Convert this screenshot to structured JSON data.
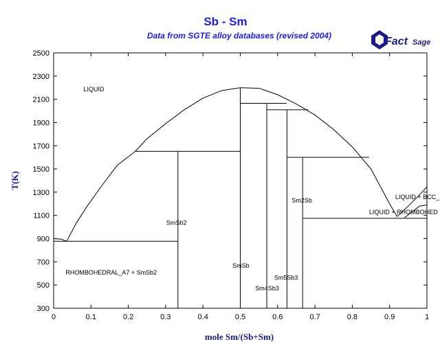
{
  "chart_data": {
    "type": "line",
    "title": "Sb - Sm",
    "subtitle": "Data from SGTE alloy databases (revised 2004)",
    "xlabel": "mole Sm/(Sb+Sm)",
    "ylabel": "T(K)",
    "xlim": [
      0,
      1
    ],
    "ylim": [
      300,
      2500
    ],
    "xticks": [
      "0",
      "0.1",
      "0.2",
      "0.3",
      "0.4",
      "0.5",
      "0.6",
      "0.7",
      "0.8",
      "0.9",
      "1"
    ],
    "yticks": [
      "300",
      "500",
      "700",
      "900",
      "1100",
      "1300",
      "1500",
      "1700",
      "1900",
      "2100",
      "2300",
      "2500"
    ],
    "logo": {
      "text_a": "Fact",
      "text_b": "Sage"
    },
    "series": [
      {
        "values": [
          [
            0,
            900
          ],
          [
            0.02,
            895
          ],
          [
            0.035,
            877
          ],
          [
            0.06,
            1030
          ],
          [
            0.09,
            1180
          ],
          [
            0.13,
            1360
          ],
          [
            0.17,
            1530
          ],
          [
            0.219,
            1652
          ]
        ]
      },
      {
        "values": [
          [
            0.219,
            1652
          ],
          [
            0.25,
            1760
          ],
          [
            0.3,
            1890
          ],
          [
            0.35,
            2010
          ],
          [
            0.4,
            2110
          ],
          [
            0.45,
            2175
          ],
          [
            0.5,
            2200
          ],
          [
            0.55,
            2195
          ],
          [
            0.6,
            2140
          ],
          [
            0.65,
            2060
          ],
          [
            0.7,
            1965
          ],
          [
            0.75,
            1840
          ],
          [
            0.8,
            1690
          ],
          [
            0.85,
            1500
          ],
          [
            0.9,
            1200
          ],
          [
            0.92,
            1090
          ]
        ]
      },
      {
        "values": [
          [
            0.92,
            1090
          ],
          [
            0.95,
            1180
          ],
          [
            0.975,
            1260
          ],
          [
            1.0,
            1345
          ]
        ]
      },
      {
        "values": [
          [
            0.94,
            1080
          ],
          [
            0.96,
            1130
          ],
          [
            0.98,
            1180
          ],
          [
            1.0,
            1190
          ]
        ]
      }
    ],
    "lines": [
      {
        "x": [
          0,
          0.333
        ],
        "y": [
          877,
          877
        ]
      },
      {
        "x": [
          0.219,
          0.5
        ],
        "y": [
          1652,
          1652
        ]
      },
      {
        "x": [
          0.5,
          0.624
        ],
        "y": [
          2065,
          2065
        ]
      },
      {
        "x": [
          0.571,
          0.682
        ],
        "y": [
          2010,
          2010
        ]
      },
      {
        "x": [
          0.625,
          0.845
        ],
        "y": [
          1600,
          1600
        ]
      },
      {
        "x": [
          0.667,
          1.0
        ],
        "y": [
          1075,
          1075
        ]
      },
      {
        "x": [
          0.333,
          0.333
        ],
        "y": [
          300,
          1652
        ]
      },
      {
        "x": [
          0.5,
          0.5
        ],
        "y": [
          300,
          2200
        ]
      },
      {
        "x": [
          0.571,
          0.571
        ],
        "y": [
          300,
          2065
        ]
      },
      {
        "x": [
          0.625,
          0.625
        ],
        "y": [
          300,
          2010
        ]
      },
      {
        "x": [
          0.667,
          0.667
        ],
        "y": [
          300,
          1600
        ]
      }
    ],
    "annotations": [
      {
        "text": "LIQUID",
        "x": 0.08,
        "y": 2170
      },
      {
        "text": "SmSb2",
        "x": 0.302,
        "y": 1020
      },
      {
        "text": "SmSb",
        "x": 0.479,
        "y": 650
      },
      {
        "text": "Sm4Sb3",
        "x": 0.54,
        "y": 455
      },
      {
        "text": "Sm5Sb3",
        "x": 0.591,
        "y": 545
      },
      {
        "text": "Sm2Sb",
        "x": 0.638,
        "y": 1210
      },
      {
        "text": "RHOMBOHEDRAL_A7 + SmSb2",
        "x": 0.032,
        "y": 590
      },
      {
        "text": "LIQUID + BCC_",
        "x": 0.915,
        "y": 1240
      },
      {
        "text": "LIQUID + RHOMBOHED",
        "x": 0.845,
        "y": 1110
      }
    ]
  }
}
